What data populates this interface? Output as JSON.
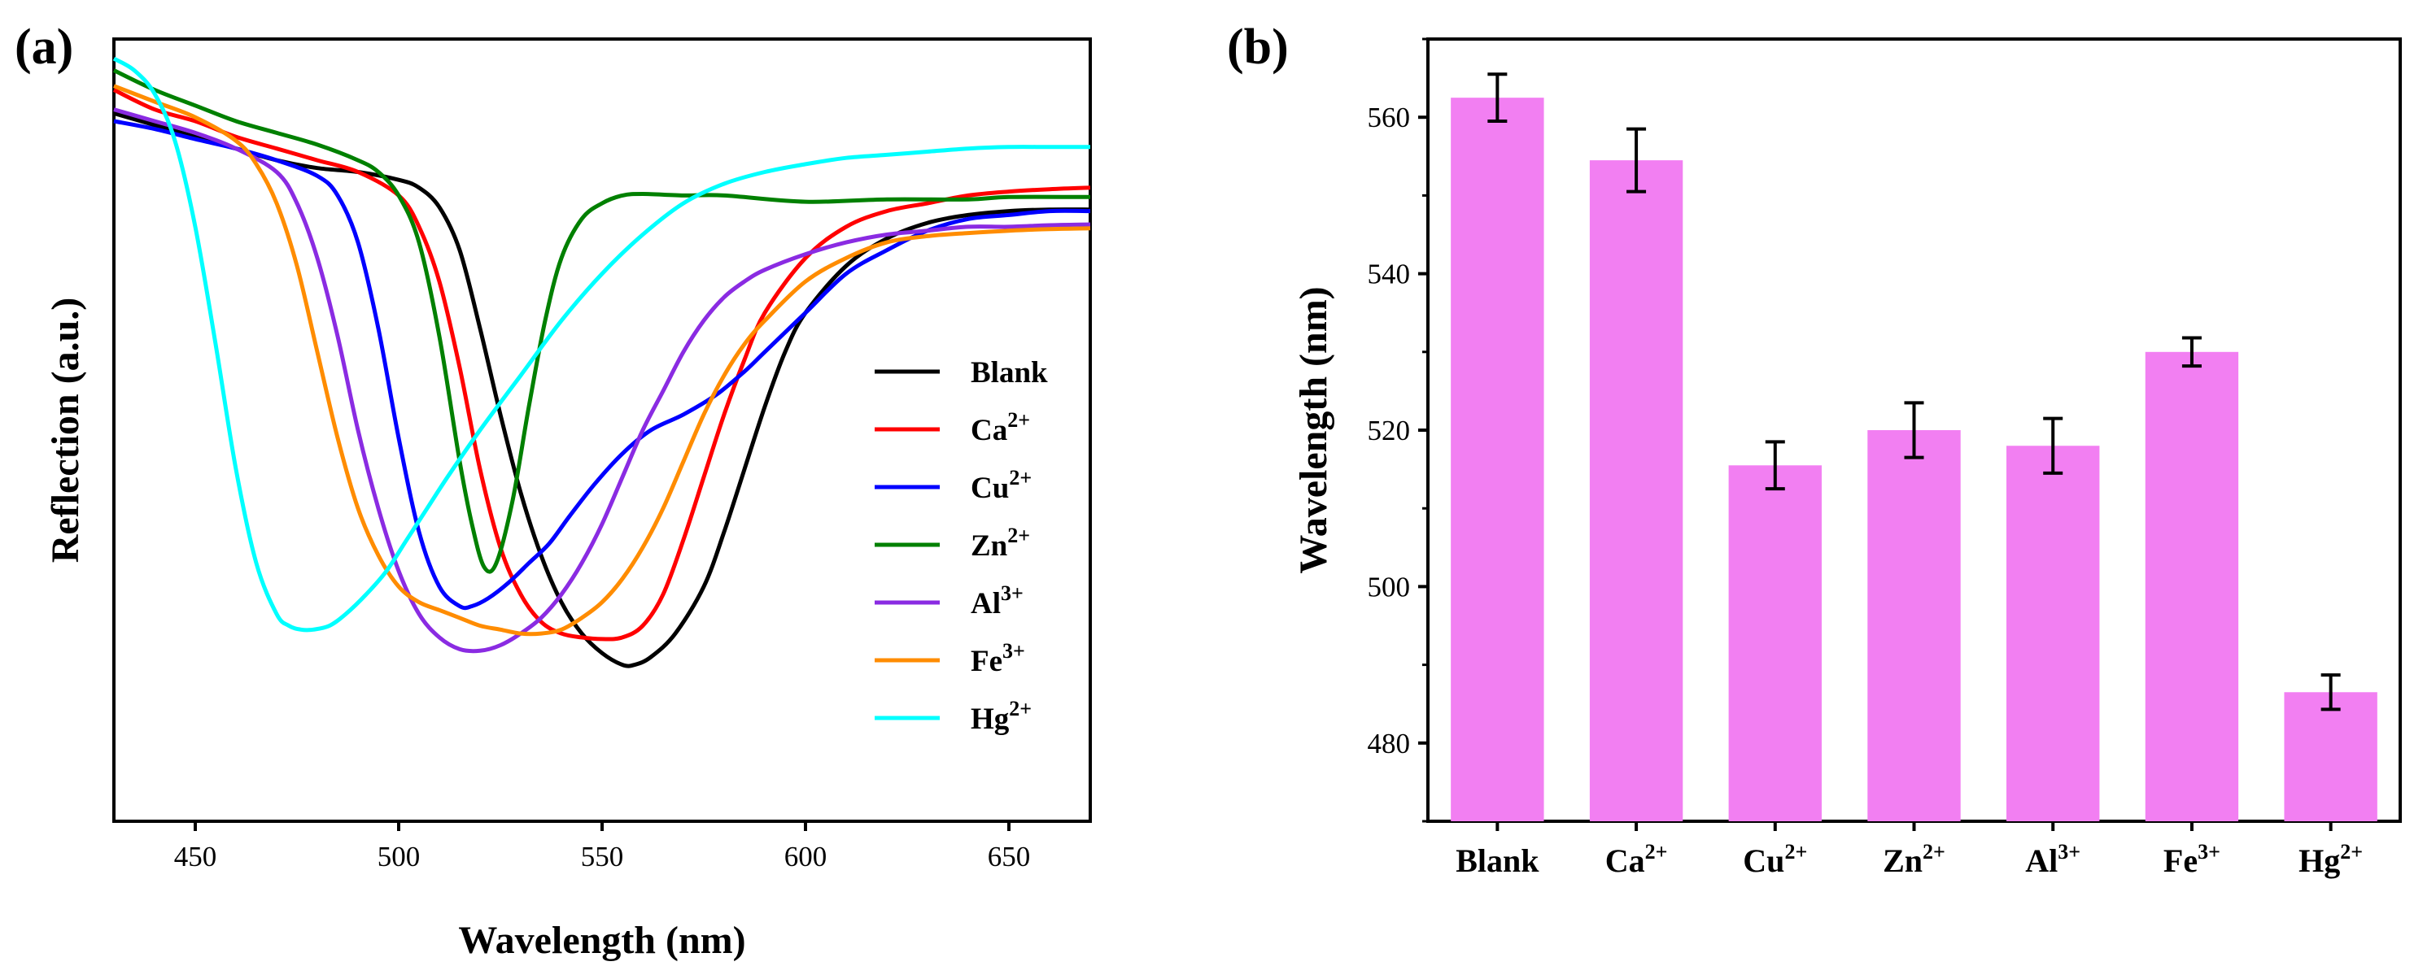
{
  "chart_data": [
    {
      "panel_label": "(a)",
      "type": "line",
      "xlabel": "Wavelength (nm)",
      "ylabel": "Reflection (a.u.)",
      "xlim": [
        430,
        670
      ],
      "ylim": [
        0,
        1
      ],
      "xticks": [
        450,
        500,
        550,
        600,
        650
      ],
      "yticks_shown": false,
      "legend_position": "center-right",
      "series": [
        {
          "name": "Blank",
          "base": "Blank",
          "sup": "",
          "color": "#000000",
          "x": [
            430,
            440,
            450,
            460,
            470,
            480,
            490,
            500,
            505,
            510,
            515,
            520,
            525,
            530,
            535,
            540,
            545,
            550,
            555,
            558,
            562,
            568,
            575,
            580,
            585,
            590,
            595,
            600,
            610,
            620,
            630,
            640,
            650,
            660,
            670
          ],
          "y": [
            0.905,
            0.89,
            0.875,
            0.86,
            0.845,
            0.835,
            0.83,
            0.82,
            0.81,
            0.785,
            0.73,
            0.63,
            0.52,
            0.42,
            0.34,
            0.28,
            0.24,
            0.215,
            0.2,
            0.2,
            0.21,
            0.24,
            0.3,
            0.37,
            0.45,
            0.53,
            0.6,
            0.65,
            0.71,
            0.745,
            0.765,
            0.775,
            0.78,
            0.782,
            0.782
          ]
        },
        {
          "name": "Ca2+",
          "base": "Ca",
          "sup": "2+",
          "color": "#ff0000",
          "x": [
            430,
            440,
            450,
            460,
            470,
            480,
            490,
            500,
            505,
            510,
            515,
            520,
            525,
            530,
            535,
            540,
            545,
            550,
            555,
            560,
            565,
            570,
            575,
            580,
            585,
            590,
            600,
            610,
            620,
            630,
            640,
            650,
            660,
            670
          ],
          "y": [
            0.935,
            0.91,
            0.895,
            0.875,
            0.86,
            0.845,
            0.83,
            0.8,
            0.76,
            0.69,
            0.58,
            0.45,
            0.35,
            0.29,
            0.255,
            0.24,
            0.235,
            0.233,
            0.235,
            0.25,
            0.29,
            0.36,
            0.44,
            0.52,
            0.59,
            0.65,
            0.72,
            0.76,
            0.78,
            0.79,
            0.8,
            0.805,
            0.808,
            0.81
          ]
        },
        {
          "name": "Cu2+",
          "base": "Cu",
          "sup": "2+",
          "color": "#0000ff",
          "x": [
            430,
            440,
            450,
            460,
            470,
            480,
            485,
            490,
            495,
            500,
            505,
            510,
            515,
            518,
            522,
            527,
            532,
            537,
            542,
            548,
            555,
            562,
            570,
            578,
            585,
            590,
            600,
            610,
            620,
            630,
            640,
            650,
            660,
            670
          ],
          "y": [
            0.895,
            0.885,
            0.872,
            0.86,
            0.845,
            0.825,
            0.8,
            0.74,
            0.63,
            0.49,
            0.37,
            0.3,
            0.275,
            0.275,
            0.285,
            0.305,
            0.33,
            0.355,
            0.39,
            0.43,
            0.47,
            0.5,
            0.52,
            0.545,
            0.575,
            0.6,
            0.65,
            0.7,
            0.73,
            0.755,
            0.77,
            0.775,
            0.78,
            0.78
          ]
        },
        {
          "name": "Zn2+",
          "base": "Zn",
          "sup": "2+",
          "color": "#008000",
          "x": [
            430,
            440,
            450,
            460,
            470,
            480,
            490,
            495,
            500,
            505,
            510,
            515,
            518,
            521,
            524,
            528,
            532,
            536,
            540,
            545,
            550,
            555,
            560,
            570,
            580,
            600,
            620,
            640,
            650,
            670
          ],
          "y": [
            0.96,
            0.935,
            0.915,
            0.895,
            0.88,
            0.865,
            0.845,
            0.83,
            0.8,
            0.74,
            0.62,
            0.46,
            0.38,
            0.325,
            0.33,
            0.41,
            0.53,
            0.64,
            0.72,
            0.77,
            0.79,
            0.8,
            0.802,
            0.8,
            0.8,
            0.792,
            0.795,
            0.795,
            0.798,
            0.798
          ]
        },
        {
          "name": "Al3+",
          "base": "Al",
          "sup": "3+",
          "color": "#8a2be2",
          "x": [
            430,
            440,
            450,
            460,
            470,
            475,
            480,
            485,
            490,
            495,
            500,
            505,
            510,
            515,
            520,
            525,
            530,
            535,
            540,
            545,
            550,
            555,
            560,
            565,
            570,
            575,
            580,
            585,
            590,
            600,
            610,
            620,
            630,
            640,
            650,
            660,
            670
          ],
          "y": [
            0.91,
            0.895,
            0.88,
            0.86,
            0.83,
            0.79,
            0.72,
            0.62,
            0.5,
            0.4,
            0.32,
            0.265,
            0.235,
            0.22,
            0.218,
            0.225,
            0.24,
            0.26,
            0.29,
            0.33,
            0.38,
            0.44,
            0.5,
            0.55,
            0.6,
            0.64,
            0.67,
            0.69,
            0.705,
            0.725,
            0.74,
            0.75,
            0.755,
            0.76,
            0.76,
            0.762,
            0.763
          ]
        },
        {
          "name": "Fe3+",
          "base": "Fe",
          "sup": "3+",
          "color": "#ff8c00",
          "x": [
            430,
            440,
            450,
            460,
            465,
            470,
            475,
            480,
            485,
            490,
            495,
            500,
            505,
            510,
            515,
            520,
            525,
            530,
            535,
            540,
            545,
            550,
            555,
            560,
            565,
            570,
            575,
            580,
            585,
            590,
            600,
            610,
            620,
            630,
            640,
            650,
            660,
            670
          ],
          "y": [
            0.94,
            0.92,
            0.9,
            0.87,
            0.84,
            0.79,
            0.71,
            0.6,
            0.49,
            0.4,
            0.34,
            0.3,
            0.28,
            0.27,
            0.26,
            0.25,
            0.245,
            0.24,
            0.24,
            0.245,
            0.26,
            0.28,
            0.31,
            0.35,
            0.4,
            0.46,
            0.52,
            0.57,
            0.61,
            0.64,
            0.69,
            0.72,
            0.74,
            0.748,
            0.752,
            0.755,
            0.757,
            0.758
          ]
        },
        {
          "name": "Hg2+",
          "base": "Hg",
          "sup": "2+",
          "color": "#00ffff",
          "x": [
            430,
            435,
            440,
            445,
            450,
            455,
            460,
            465,
            470,
            473,
            476,
            479,
            483,
            487,
            492,
            497,
            502,
            507,
            512,
            520,
            530,
            540,
            550,
            560,
            570,
            580,
            590,
            600,
            610,
            620,
            630,
            640,
            650,
            660,
            670
          ],
          "y": [
            0.975,
            0.96,
            0.93,
            0.87,
            0.76,
            0.61,
            0.45,
            0.33,
            0.265,
            0.25,
            0.245,
            0.245,
            0.25,
            0.265,
            0.29,
            0.32,
            0.36,
            0.4,
            0.44,
            0.5,
            0.57,
            0.64,
            0.7,
            0.75,
            0.79,
            0.815,
            0.83,
            0.84,
            0.848,
            0.852,
            0.856,
            0.86,
            0.862,
            0.862,
            0.862
          ]
        }
      ]
    },
    {
      "panel_label": "(b)",
      "type": "bar",
      "xlabel": "",
      "ylabel": "Wavelength (nm)",
      "ylim": [
        470,
        570
      ],
      "yticks": [
        480,
        500,
        520,
        540,
        560
      ],
      "bar_color": "#f27ff2",
      "categories": [
        {
          "name": "Blank",
          "base": "Blank",
          "sup": ""
        },
        {
          "name": "Ca2+",
          "base": "Ca",
          "sup": "2+"
        },
        {
          "name": "Cu2+",
          "base": "Cu",
          "sup": "2+"
        },
        {
          "name": "Zn2+",
          "base": "Zn",
          "sup": "2+"
        },
        {
          "name": "Al3+",
          "base": "Al",
          "sup": "3+"
        },
        {
          "name": "Fe3+",
          "base": "Fe",
          "sup": "3+"
        },
        {
          "name": "Hg2+",
          "base": "Hg",
          "sup": "2+"
        }
      ],
      "values": [
        562.5,
        554.5,
        515.5,
        520,
        518,
        530,
        486.5
      ],
      "errors": [
        3,
        4,
        3,
        3.5,
        3.5,
        1.8,
        2.2
      ]
    }
  ]
}
